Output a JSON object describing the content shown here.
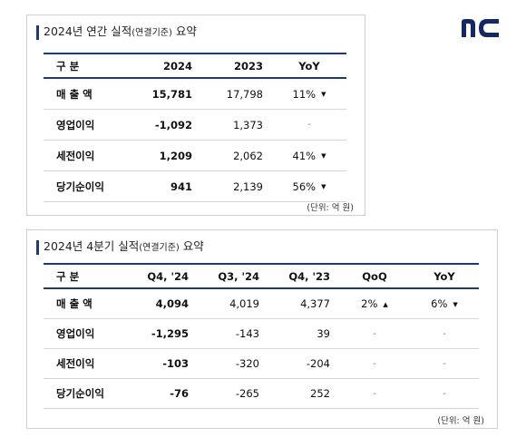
{
  "logo_text": "nc",
  "annual": {
    "title": "2024년 연간 실적",
    "title_small": "(연결기준)",
    "title_suffix": " 요약",
    "headers": [
      "구 분",
      "2024",
      "2023",
      "YoY"
    ],
    "rows": [
      {
        "label": "매 출 액",
        "v2024": "15,781",
        "v2023": "17,798",
        "yoy": "11%",
        "yoy_dir": "down"
      },
      {
        "label": "영업이익",
        "v2024": "-1,092",
        "v2023": "1,373",
        "yoy": "-",
        "yoy_dir": "none"
      },
      {
        "label": "세전이익",
        "v2024": "1,209",
        "v2023": "2,062",
        "yoy": "41%",
        "yoy_dir": "down"
      },
      {
        "label": "당기순이익",
        "v2024": "941",
        "v2023": "2,139",
        "yoy": "56%",
        "yoy_dir": "down"
      }
    ],
    "unit": "(단위: 억 원)"
  },
  "quarter": {
    "title": "2024년 4분기 실적",
    "title_small": "(연결기준)",
    "title_suffix": " 요약",
    "headers": [
      "구 분",
      "Q4, '24",
      "Q3, '24",
      "Q4, '23",
      "QoQ",
      "YoY"
    ],
    "rows": [
      {
        "label": "매 출 액",
        "q424": "4,094",
        "q324": "4,019",
        "q423": "4,377",
        "qoq": "2%",
        "qoq_dir": "up",
        "yoy": "6%",
        "yoy_dir": "down"
      },
      {
        "label": "영업이익",
        "q424": "-1,295",
        "q324": "-143",
        "q423": "39",
        "qoq": "-",
        "qoq_dir": "none",
        "yoy": "-",
        "yoy_dir": "none"
      },
      {
        "label": "세전이익",
        "q424": "-103",
        "q324": "-320",
        "q423": "-204",
        "qoq": "-",
        "qoq_dir": "none",
        "yoy": "-",
        "yoy_dir": "none"
      },
      {
        "label": "당기순이익",
        "q424": "-76",
        "q324": "-265",
        "q423": "252",
        "qoq": "-",
        "qoq_dir": "none",
        "yoy": "-",
        "yoy_dir": "none"
      }
    ],
    "unit": "(단위: 억 원)"
  },
  "icons": {
    "up": "up-triangle-icon",
    "down": "down-triangle-icon"
  }
}
